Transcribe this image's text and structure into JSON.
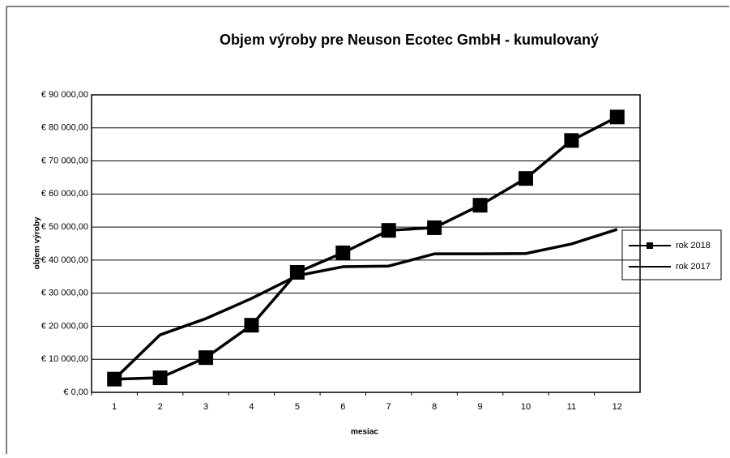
{
  "chart_data": {
    "type": "line",
    "title": "Objem výroby pre Neuson Ecotec GmbH - kumulovaný",
    "x_label": "mesiac",
    "y_label": "objem výroby",
    "categories": [
      "1",
      "2",
      "3",
      "4",
      "5",
      "6",
      "7",
      "8",
      "9",
      "10",
      "11",
      "12"
    ],
    "series": [
      {
        "name": "rok 2018",
        "color": "#000000",
        "marker": "square",
        "values": [
          4000,
          4400,
          10500,
          20300,
          36300,
          42200,
          49000,
          49800,
          56600,
          64700,
          76200,
          83300
        ]
      },
      {
        "name": "rok 2017",
        "color": "#000000",
        "marker": "none",
        "values": [
          4000,
          17400,
          22300,
          28400,
          35300,
          38000,
          38200,
          41900,
          41900,
          42000,
          44900,
          49300
        ]
      }
    ],
    "ylim": [
      0,
      90000
    ],
    "yticks": [
      {
        "value": 0,
        "label": "€ 0,00"
      },
      {
        "value": 10000,
        "label": "€ 10 000,00"
      },
      {
        "value": 20000,
        "label": "€ 20 000,00"
      },
      {
        "value": 30000,
        "label": "€ 30 000,00"
      },
      {
        "value": 40000,
        "label": "€ 40 000,00"
      },
      {
        "value": 50000,
        "label": "€ 50 000,00"
      },
      {
        "value": 60000,
        "label": "€ 60 000,00"
      },
      {
        "value": 70000,
        "label": "€ 70 000,00"
      },
      {
        "value": 80000,
        "label": "€ 80 000,00"
      },
      {
        "value": 90000,
        "label": "€ 90 000,00"
      }
    ],
    "grid": true,
    "legend": "right"
  }
}
